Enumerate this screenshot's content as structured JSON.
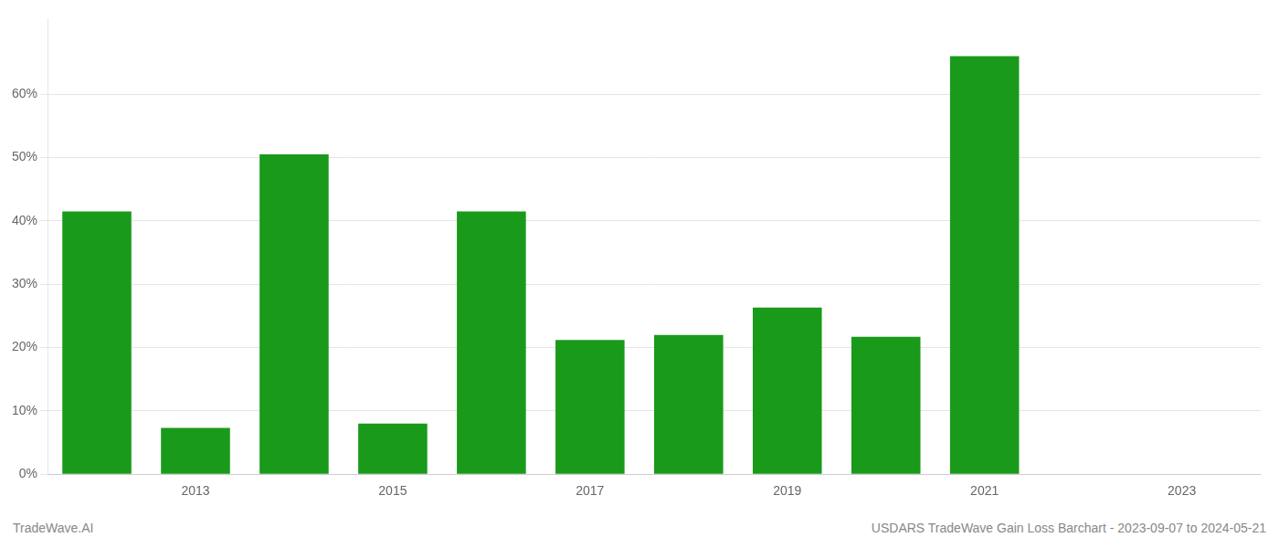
{
  "chart_data": {
    "type": "bar",
    "x": [
      2012,
      2013,
      2014,
      2015,
      2016,
      2017,
      2018,
      2019,
      2020,
      2021,
      2022
    ],
    "values": [
      0.415,
      0.073,
      0.505,
      0.08,
      0.415,
      0.212,
      0.22,
      0.263,
      0.217,
      0.66,
      0.0
    ],
    "color": "#1a9a1a",
    "xlim": [
      2011.5,
      2023.8
    ],
    "xticks": [
      2013,
      2015,
      2017,
      2019,
      2021,
      2023
    ],
    "ylim": [
      0,
      0.72
    ],
    "yticks": [
      {
        "value": 0.0,
        "label": "0%"
      },
      {
        "value": 0.1,
        "label": "10%"
      },
      {
        "value": 0.2,
        "label": "20%"
      },
      {
        "value": 0.3,
        "label": "30%"
      },
      {
        "value": 0.4,
        "label": "40%"
      },
      {
        "value": 0.5,
        "label": "50%"
      },
      {
        "value": 0.6,
        "label": "60%"
      }
    ],
    "grid": true,
    "annotations": [
      "TradeWave.AI",
      "USDARS TradeWave Gain Loss Barchart - 2023-09-07 to 2024-05-21"
    ]
  }
}
